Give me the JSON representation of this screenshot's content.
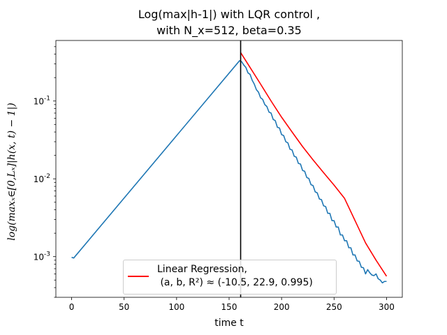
{
  "chart_data": {
    "type": "line",
    "title": [
      "Log(max|h-1|) with LQR control ,",
      "with N_x=512, beta=0.35"
    ],
    "xlabel": "time t",
    "ylabel": "log(max_{x∈[0,L_x]}|h(x,t) − 1|)",
    "ylabel_display": "log(maxₓ∈[0,Lₓ]|h(x, t) − 1|)",
    "xlim": [
      -15,
      315
    ],
    "ylim": [
      0.0003,
      0.6
    ],
    "yscale": "log",
    "xticks": [
      0,
      50,
      100,
      150,
      200,
      250,
      300
    ],
    "xtick_labels": [
      "0",
      "50",
      "100",
      "150",
      "200",
      "250",
      "300"
    ],
    "yticks": [
      0.001,
      0.01,
      0.1
    ],
    "ytick_labels": [
      "10^{-3}",
      "10^{-2}",
      "10^{-1}"
    ],
    "grid": false,
    "legend_position": "bottom-center",
    "vertical_line": {
      "x": 161,
      "color": "#000000"
    },
    "series": [
      {
        "label": "",
        "color": "#1f77b4",
        "points": [
          [
            0,
            0.00098
          ],
          [
            2,
            0.00096
          ],
          [
            160,
            0.33
          ],
          [
            162,
            0.32
          ],
          [
            164,
            0.29
          ],
          [
            166,
            0.27
          ],
          [
            168,
            0.23
          ],
          [
            170,
            0.22
          ],
          [
            172,
            0.185
          ],
          [
            174,
            0.165
          ],
          [
            176,
            0.14
          ],
          [
            178,
            0.13
          ],
          [
            180,
            0.11
          ],
          [
            182,
            0.105
          ],
          [
            184,
            0.09
          ],
          [
            186,
            0.085
          ],
          [
            188,
            0.072
          ],
          [
            190,
            0.07
          ],
          [
            192,
            0.058
          ],
          [
            194,
            0.056
          ],
          [
            196,
            0.046
          ],
          [
            198,
            0.045
          ],
          [
            200,
            0.037
          ],
          [
            202,
            0.036
          ],
          [
            204,
            0.03
          ],
          [
            206,
            0.029
          ],
          [
            208,
            0.024
          ],
          [
            210,
            0.0235
          ],
          [
            212,
            0.0195
          ],
          [
            214,
            0.019
          ],
          [
            216,
            0.0158
          ],
          [
            218,
            0.0155
          ],
          [
            220,
            0.0128
          ],
          [
            222,
            0.0125
          ],
          [
            224,
            0.0104
          ],
          [
            226,
            0.0101
          ],
          [
            228,
            0.0084
          ],
          [
            230,
            0.0082
          ],
          [
            232,
            0.0068
          ],
          [
            234,
            0.0066
          ],
          [
            236,
            0.0055
          ],
          [
            238,
            0.0054
          ],
          [
            240,
            0.0045
          ],
          [
            242,
            0.0044
          ],
          [
            244,
            0.0036
          ],
          [
            246,
            0.0036
          ],
          [
            248,
            0.0029
          ],
          [
            250,
            0.0029
          ],
          [
            252,
            0.0024
          ],
          [
            254,
            0.0024
          ],
          [
            256,
            0.0019
          ],
          [
            258,
            0.0019
          ],
          [
            260,
            0.0016
          ],
          [
            262,
            0.0016
          ],
          [
            264,
            0.0013
          ],
          [
            266,
            0.0013
          ],
          [
            268,
            0.00105
          ],
          [
            270,
            0.00105
          ],
          [
            272,
            0.00088
          ],
          [
            274,
            0.00087
          ],
          [
            276,
            0.00073
          ],
          [
            278,
            0.00072
          ],
          [
            280,
            0.0006
          ],
          [
            282,
            0.00068
          ],
          [
            284,
            0.00062
          ],
          [
            286,
            0.00058
          ],
          [
            288,
            0.00057
          ],
          [
            290,
            0.0006
          ],
          [
            292,
            0.00052
          ],
          [
            294,
            0.0005
          ],
          [
            296,
            0.00046
          ],
          [
            298,
            0.00048
          ],
          [
            300,
            0.00048
          ]
        ]
      },
      {
        "label": "Linear Regression,\n (a, b, R²) ≈ (-10.5, 22.9, 0.995)",
        "color": "#ff0000",
        "points": [
          [
            161,
            0.42
          ],
          [
            170,
            0.27
          ],
          [
            180,
            0.165
          ],
          [
            190,
            0.1
          ],
          [
            200,
            0.062
          ],
          [
            210,
            0.04
          ],
          [
            220,
            0.026
          ],
          [
            230,
            0.0175
          ],
          [
            240,
            0.012
          ],
          [
            250,
            0.0083
          ],
          [
            260,
            0.0056
          ],
          [
            270,
            0.0029
          ],
          [
            280,
            0.0015
          ],
          [
            290,
            0.0009
          ],
          [
            300,
            0.00056
          ]
        ]
      }
    ]
  }
}
